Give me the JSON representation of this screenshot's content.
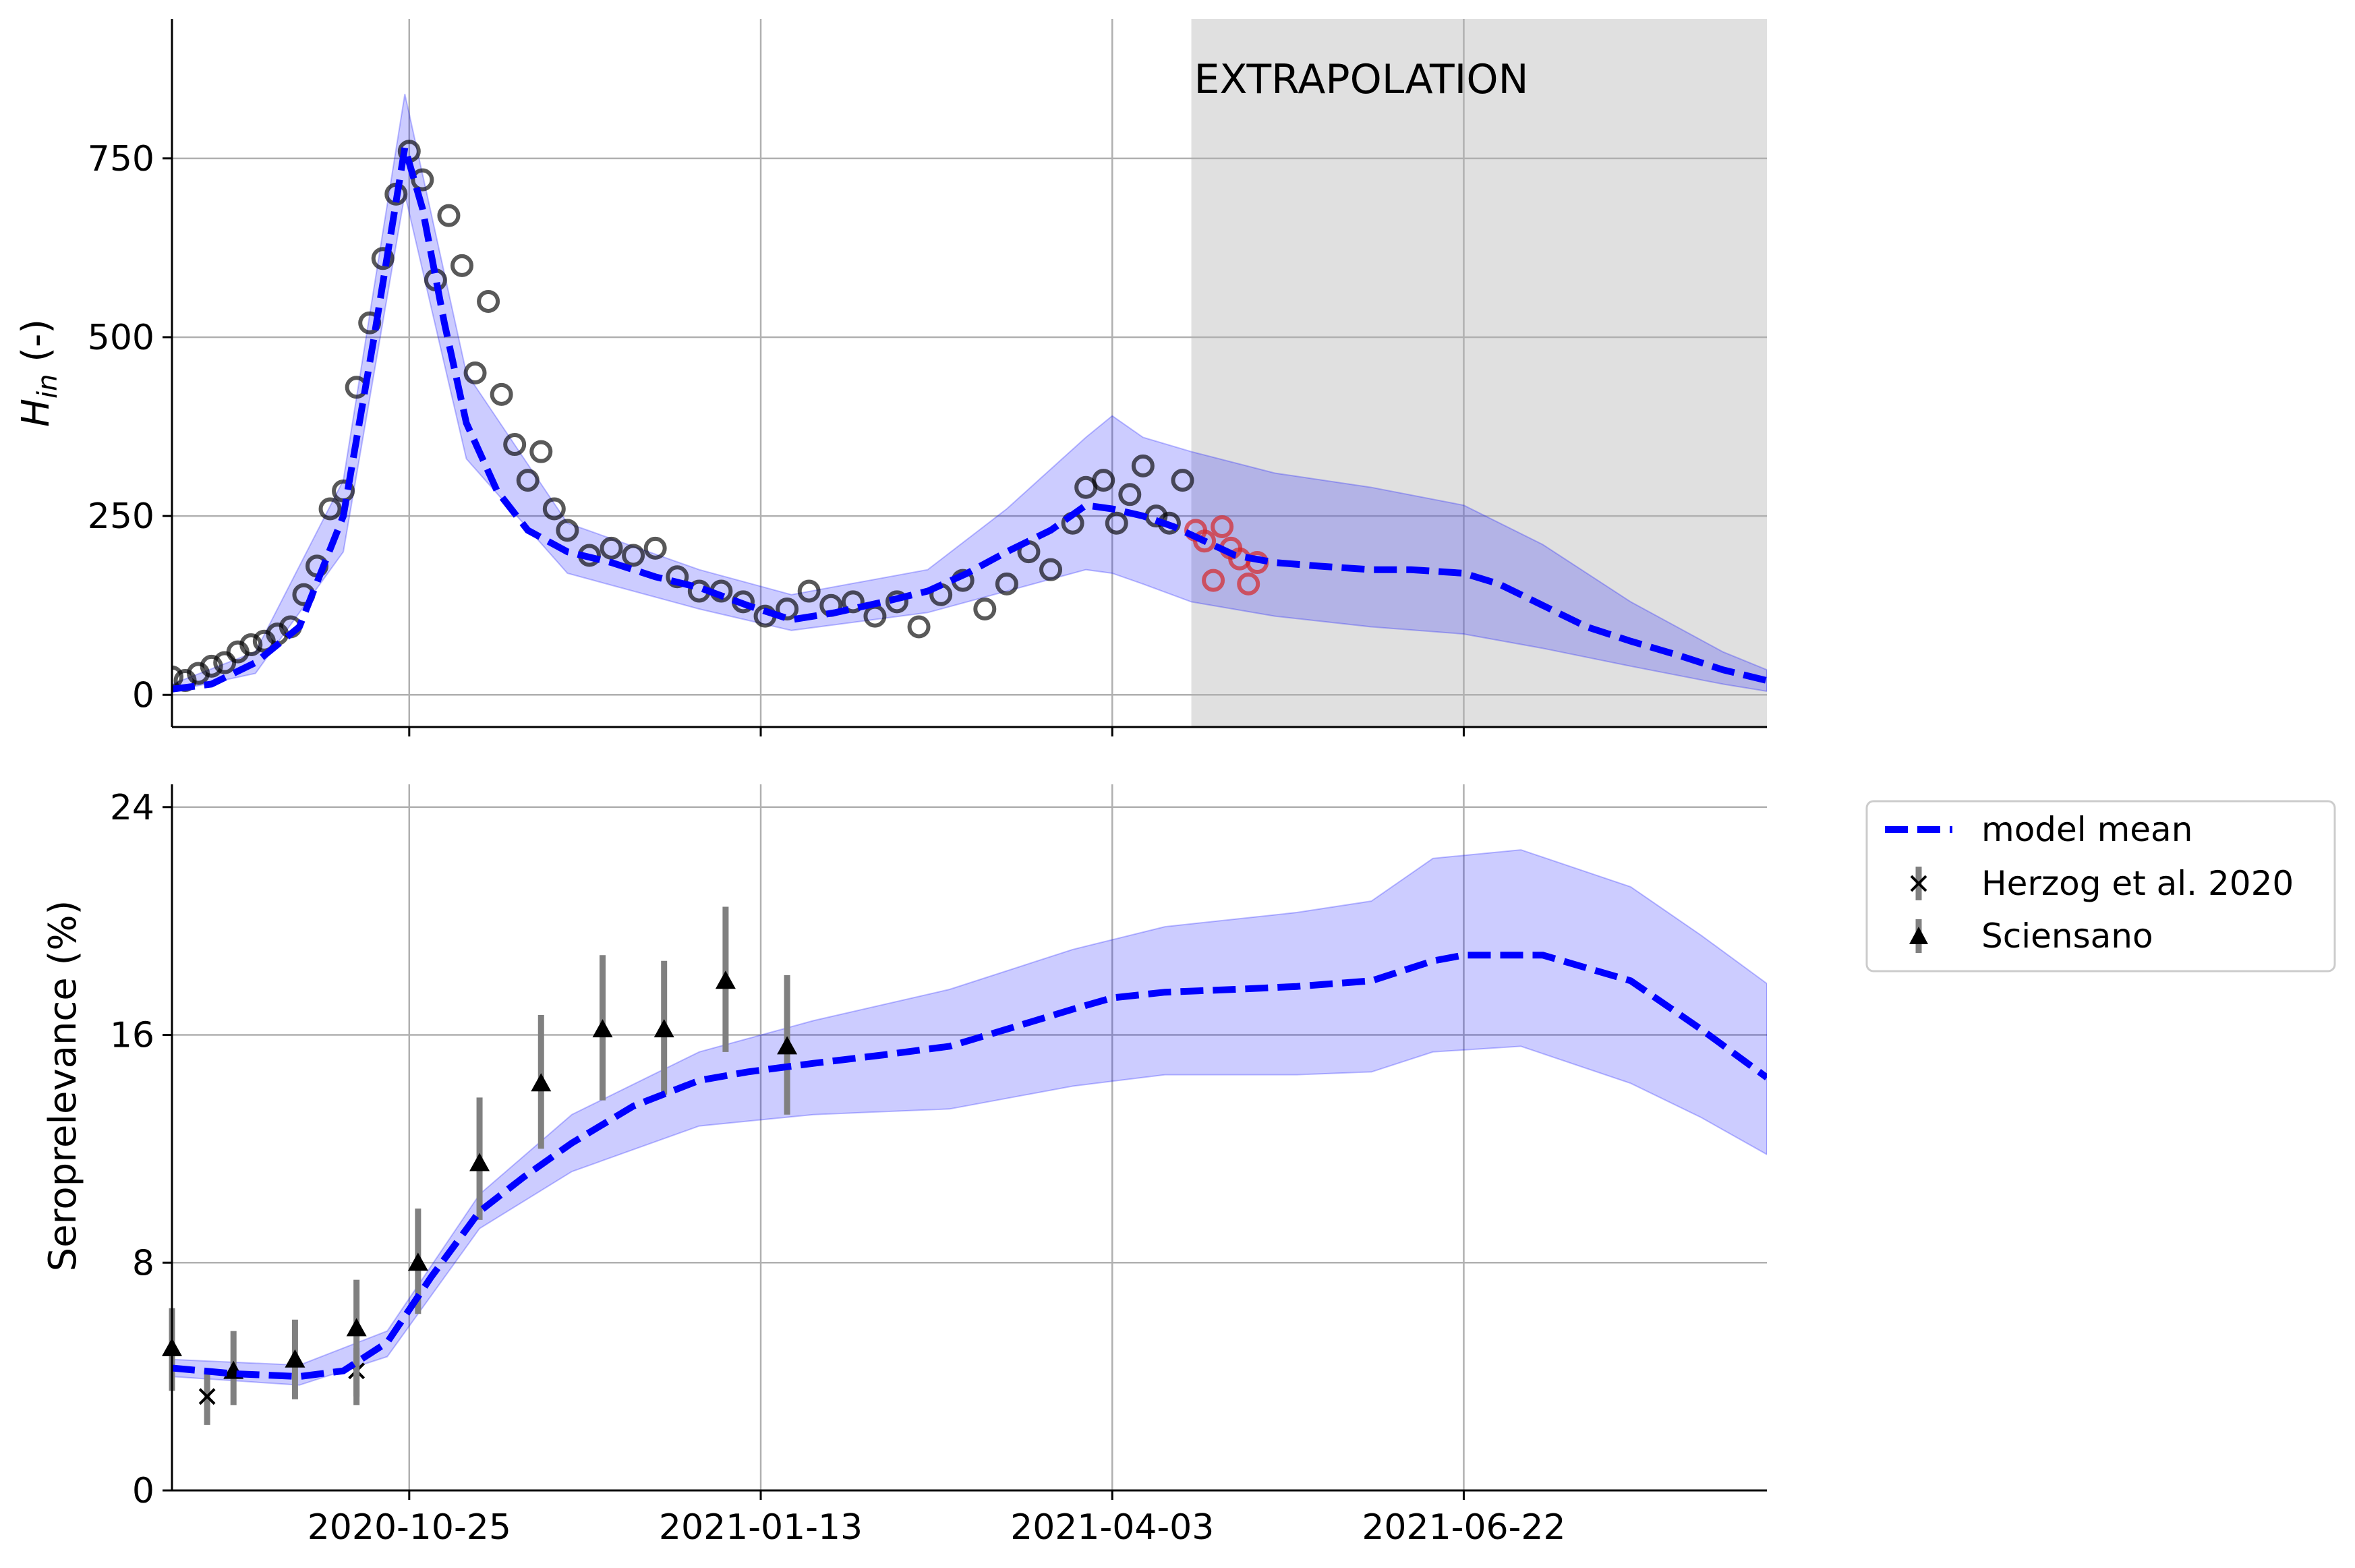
{
  "chart_data": [
    {
      "type": "line",
      "panel": "top",
      "ylabel": "H_in (-)",
      "ylabel_main": "H",
      "ylabel_sub": "in",
      "ylabel_suffix": " (-)",
      "x_ticks": [
        "2020-10-25",
        "2021-01-13",
        "2021-04-03",
        "2021-06-22"
      ],
      "xlim": [
        "2020-09-01",
        "2021-08-30"
      ],
      "yticks": [
        0,
        250,
        500,
        750
      ],
      "ylim": [
        -45,
        945
      ],
      "grid": true,
      "annotation": "EXTRAPOLATION",
      "extrapolation_start": "2021-04-21",
      "band_color": "#0000ff",
      "mean_color": "#0000ff",
      "observed_color": "#000000",
      "holdout_color": "#d62728",
      "series": [
        {
          "kind": "model_mean",
          "x": [
            "2020-09-01",
            "2020-09-10",
            "2020-09-20",
            "2020-09-30",
            "2020-10-10",
            "2020-10-17",
            "2020-10-24",
            "2020-10-28",
            "2020-11-02",
            "2020-11-07",
            "2020-11-14",
            "2020-11-21",
            "2020-11-30",
            "2020-12-10",
            "2020-12-20",
            "2020-12-30",
            "2021-01-10",
            "2021-01-20",
            "2021-01-30",
            "2021-02-10",
            "2021-02-20",
            "2021-03-01",
            "2021-03-10",
            "2021-03-20",
            "2021-03-28",
            "2021-04-03",
            "2021-04-10",
            "2021-04-17",
            "2021-04-24",
            "2021-05-01",
            "2021-05-10",
            "2021-05-20",
            "2021-06-01",
            "2021-06-10",
            "2021-06-22",
            "2021-06-30",
            "2021-07-10",
            "2021-07-20",
            "2021-07-30",
            "2021-08-10",
            "2021-08-20",
            "2021-08-30"
          ],
          "y": [
            8,
            15,
            45,
            95,
            250,
            500,
            765,
            680,
            520,
            380,
            285,
            230,
            200,
            185,
            165,
            150,
            125,
            105,
            115,
            130,
            145,
            170,
            200,
            230,
            265,
            260,
            250,
            235,
            215,
            195,
            185,
            180,
            175,
            175,
            170,
            155,
            125,
            95,
            75,
            55,
            35,
            20
          ]
        },
        {
          "kind": "band_upper",
          "x": [
            "2020-09-01",
            "2020-09-20",
            "2020-10-10",
            "2020-10-24",
            "2020-11-07",
            "2020-11-30",
            "2020-12-30",
            "2021-01-20",
            "2021-02-20",
            "2021-03-10",
            "2021-03-28",
            "2021-04-03",
            "2021-04-10",
            "2021-04-21",
            "2021-05-10",
            "2021-06-01",
            "2021-06-22",
            "2021-07-10",
            "2021-07-30",
            "2021-08-20",
            "2021-08-30"
          ],
          "y": [
            15,
            60,
            300,
            840,
            450,
            240,
            175,
            140,
            175,
            260,
            360,
            390,
            360,
            340,
            310,
            290,
            265,
            210,
            130,
            60,
            35
          ]
        },
        {
          "kind": "band_lower",
          "x": [
            "2020-09-01",
            "2020-09-20",
            "2020-10-10",
            "2020-10-24",
            "2020-11-07",
            "2020-11-30",
            "2020-12-30",
            "2021-01-20",
            "2021-02-20",
            "2021-03-10",
            "2021-03-28",
            "2021-04-03",
            "2021-04-10",
            "2021-04-21",
            "2021-05-10",
            "2021-06-01",
            "2021-06-22",
            "2021-07-10",
            "2021-07-30",
            "2021-08-20",
            "2021-08-30"
          ],
          "y": [
            5,
            30,
            200,
            700,
            330,
            170,
            120,
            90,
            115,
            145,
            175,
            170,
            155,
            130,
            110,
            95,
            85,
            65,
            40,
            15,
            5
          ]
        },
        {
          "kind": "observed",
          "x": [
            "2020-09-01",
            "2020-09-04",
            "2020-09-07",
            "2020-09-10",
            "2020-09-13",
            "2020-09-16",
            "2020-09-19",
            "2020-09-22",
            "2020-09-25",
            "2020-09-28",
            "2020-10-01",
            "2020-10-04",
            "2020-10-07",
            "2020-10-10",
            "2020-10-13",
            "2020-10-16",
            "2020-10-19",
            "2020-10-22",
            "2020-10-25",
            "2020-10-28",
            "2020-10-31",
            "2020-11-03",
            "2020-11-06",
            "2020-11-09",
            "2020-11-12",
            "2020-11-15",
            "2020-11-18",
            "2020-11-21",
            "2020-11-24",
            "2020-11-27",
            "2020-11-30",
            "2020-12-05",
            "2020-12-10",
            "2020-12-15",
            "2020-12-20",
            "2020-12-25",
            "2020-12-30",
            "2021-01-04",
            "2021-01-09",
            "2021-01-14",
            "2021-01-19",
            "2021-01-24",
            "2021-01-29",
            "2021-02-03",
            "2021-02-08",
            "2021-02-13",
            "2021-02-18",
            "2021-02-23",
            "2021-02-28",
            "2021-03-05",
            "2021-03-10",
            "2021-03-15",
            "2021-03-20",
            "2021-03-25",
            "2021-03-28",
            "2021-04-01",
            "2021-04-04",
            "2021-04-07",
            "2021-04-10",
            "2021-04-13",
            "2021-04-16",
            "2021-04-19"
          ],
          "y": [
            25,
            20,
            30,
            40,
            45,
            60,
            70,
            75,
            85,
            95,
            140,
            180,
            260,
            285,
            430,
            520,
            610,
            700,
            760,
            720,
            580,
            670,
            600,
            450,
            550,
            420,
            350,
            300,
            340,
            260,
            230,
            195,
            205,
            195,
            205,
            165,
            145,
            145,
            130,
            110,
            120,
            145,
            125,
            130,
            110,
            130,
            95,
            140,
            160,
            120,
            155,
            200,
            175,
            240,
            290,
            300,
            240,
            280,
            320,
            250,
            240,
            300
          ]
        },
        {
          "kind": "holdout",
          "x": [
            "2021-04-22",
            "2021-04-24",
            "2021-04-26",
            "2021-04-28",
            "2021-04-30",
            "2021-05-02",
            "2021-05-04",
            "2021-05-06"
          ],
          "y": [
            230,
            215,
            160,
            235,
            205,
            190,
            155,
            185
          ]
        }
      ]
    },
    {
      "type": "line",
      "panel": "bottom",
      "ylabel": "Seroprelevance (%)",
      "x_ticks": [
        "2020-10-25",
        "2021-01-13",
        "2021-04-03",
        "2021-06-22"
      ],
      "xlim": [
        "2020-09-01",
        "2021-08-30"
      ],
      "yticks": [
        0,
        8,
        16,
        24
      ],
      "ylim": [
        0,
        24.8
      ],
      "grid": true,
      "legend": {
        "location": "outside-top-right",
        "entries": [
          "model mean",
          "Herzog et al. 2020",
          "Sciensano"
        ]
      },
      "series": [
        {
          "name": "model mean",
          "kind": "model_mean",
          "x": [
            "2020-09-01",
            "2020-09-15",
            "2020-09-30",
            "2020-10-10",
            "2020-10-20",
            "2020-10-30",
            "2020-11-10",
            "2020-11-20",
            "2020-12-01",
            "2020-12-15",
            "2020-12-30",
            "2021-01-10",
            "2021-01-25",
            "2021-02-10",
            "2021-02-25",
            "2021-03-10",
            "2021-03-25",
            "2021-04-03",
            "2021-04-15",
            "2021-05-01",
            "2021-05-15",
            "2021-06-01",
            "2021-06-15",
            "2021-06-22",
            "2021-07-10",
            "2021-07-30",
            "2021-08-15",
            "2021-08-30"
          ],
          "y": [
            4.3,
            4.1,
            4.0,
            4.2,
            5.2,
            7.5,
            9.8,
            11.0,
            12.2,
            13.5,
            14.4,
            14.7,
            15.0,
            15.3,
            15.6,
            16.2,
            16.9,
            17.3,
            17.5,
            17.6,
            17.7,
            17.9,
            18.6,
            18.8,
            18.8,
            17.9,
            16.2,
            14.5
          ]
        },
        {
          "kind": "band_upper",
          "x": [
            "2020-09-01",
            "2020-09-30",
            "2020-10-20",
            "2020-11-10",
            "2020-12-01",
            "2020-12-30",
            "2021-01-25",
            "2021-02-25",
            "2021-03-25",
            "2021-04-15",
            "2021-05-15",
            "2021-06-01",
            "2021-06-15",
            "2021-07-05",
            "2021-07-30",
            "2021-08-15",
            "2021-08-30"
          ],
          "y": [
            4.6,
            4.4,
            5.6,
            10.4,
            13.2,
            15.4,
            16.5,
            17.6,
            19.0,
            19.8,
            20.3,
            20.7,
            22.2,
            22.5,
            21.2,
            19.5,
            17.8
          ]
        },
        {
          "kind": "band_lower",
          "x": [
            "2020-09-01",
            "2020-09-30",
            "2020-10-20",
            "2020-11-10",
            "2020-12-01",
            "2020-12-30",
            "2021-01-25",
            "2021-02-25",
            "2021-03-25",
            "2021-04-15",
            "2021-05-15",
            "2021-06-01",
            "2021-06-15",
            "2021-07-05",
            "2021-07-30",
            "2021-08-15",
            "2021-08-30"
          ],
          "y": [
            4.0,
            3.7,
            4.7,
            9.2,
            11.2,
            12.8,
            13.2,
            13.4,
            14.2,
            14.6,
            14.6,
            14.7,
            15.4,
            15.6,
            14.3,
            13.1,
            11.8
          ]
        },
        {
          "name": "Herzog et al. 2020",
          "kind": "points_x",
          "x": [
            "2020-09-09",
            "2020-10-13"
          ],
          "y": [
            3.3,
            4.2
          ],
          "err_low": [
            2.3,
            3.3
          ],
          "err_high": [
            4.2,
            5.0
          ]
        },
        {
          "name": "Sciensano",
          "kind": "points_triangle",
          "x": [
            "2020-09-01",
            "2020-09-15",
            "2020-09-29",
            "2020-10-13",
            "2020-10-27",
            "2020-11-10",
            "2020-11-24",
            "2020-12-08",
            "2020-12-22",
            "2021-01-05",
            "2021-01-19"
          ],
          "y": [
            5.0,
            4.2,
            4.6,
            5.7,
            8.0,
            11.5,
            14.3,
            16.2,
            16.2,
            17.9,
            15.6
          ],
          "err_low": [
            3.5,
            3.0,
            3.2,
            3.0,
            6.2,
            9.5,
            12.0,
            13.7,
            13.9,
            15.4,
            13.2
          ],
          "err_high": [
            6.4,
            5.6,
            6.0,
            7.4,
            9.9,
            13.8,
            16.7,
            18.8,
            18.6,
            20.5,
            18.1
          ]
        }
      ]
    }
  ]
}
